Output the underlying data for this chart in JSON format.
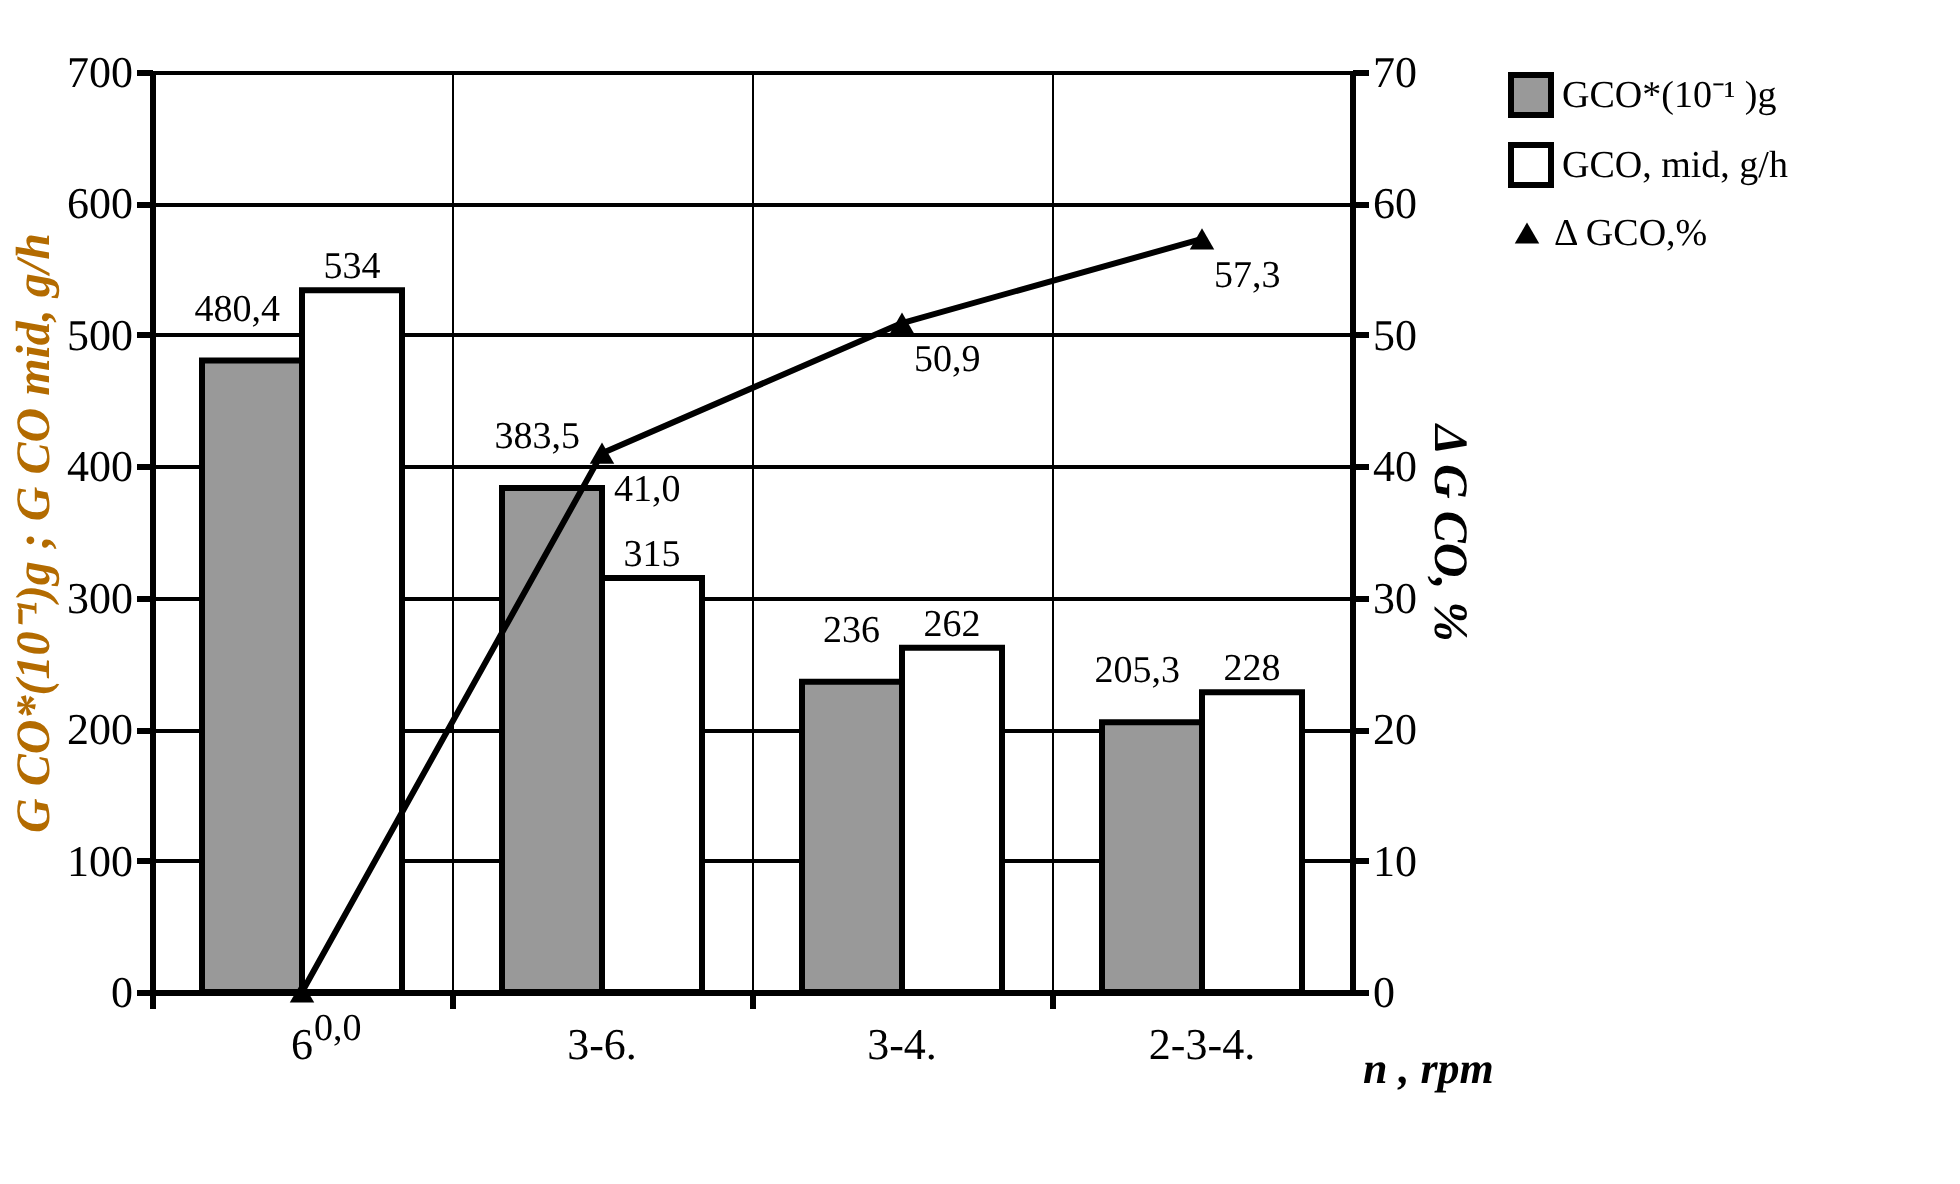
{
  "chart_data": {
    "type": "bar",
    "xlabel": "n , rpm",
    "ylabel": "G CO*(10⁻¹)g ; G CO mid, g/h",
    "y2label": "Δ G CO, %",
    "categories": [
      "6",
      "3-6.",
      "3-4.",
      "2-3-4."
    ],
    "series": [
      {
        "name": "GCO*(10⁻¹ )g",
        "color": "#999999",
        "values": [
          480.4,
          383.5,
          236,
          205.3
        ],
        "value_labels": [
          "480,4",
          "383,5",
          "236",
          "205,3"
        ]
      },
      {
        "name": "GCO, mid, g/h",
        "color": "#ffffff",
        "values": [
          534,
          315,
          262,
          228
        ],
        "value_labels": [
          "534",
          "315",
          "262",
          "228"
        ]
      },
      {
        "name": "Δ GCO,%",
        "type": "line",
        "axis": "y2",
        "color": "#000000",
        "marker": "triangle",
        "values": [
          0.0,
          41.0,
          50.9,
          57.3
        ],
        "value_labels": [
          "0,0",
          "41,0",
          "50,9",
          "57,3"
        ]
      }
    ],
    "ylim": [
      0,
      700
    ],
    "yticks": [
      0,
      100,
      200,
      300,
      400,
      500,
      600,
      700
    ],
    "y2lim": [
      0,
      70
    ],
    "y2ticks": [
      0,
      10,
      20,
      30,
      40,
      50,
      60,
      70
    ],
    "grid": true,
    "legend": "right"
  }
}
